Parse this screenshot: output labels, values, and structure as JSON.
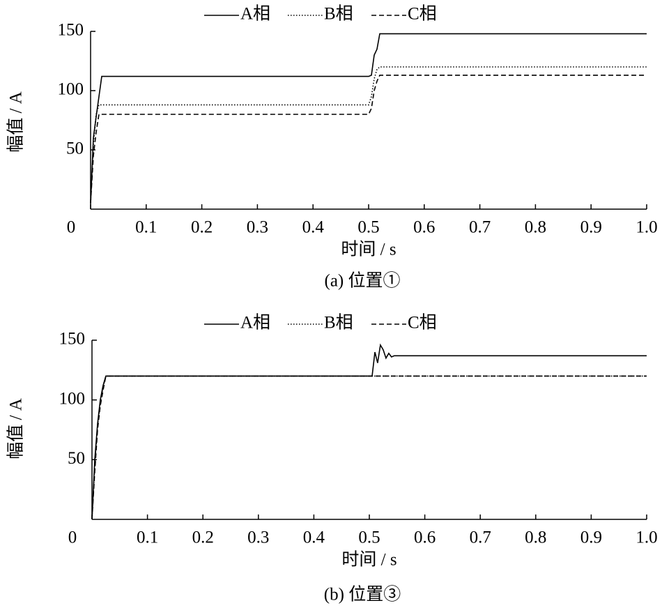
{
  "chart_data": [
    {
      "type": "line",
      "caption": "(a)  位置①",
      "xlabel": "时间 / s",
      "ylabel": "幅值 / A",
      "x": [
        0,
        0.005,
        0.01,
        0.015,
        0.02,
        0.5,
        0.505,
        0.51,
        0.515,
        0.52,
        0.53,
        0.54,
        0.55,
        1.0
      ],
      "series": [
        {
          "name": "A相",
          "color": "#000000",
          "style": "solid",
          "values": [
            5,
            60,
            78,
            95,
            112,
            112,
            113,
            130,
            135,
            148,
            148,
            148,
            148,
            148
          ]
        },
        {
          "name": "B相",
          "color": "#000000",
          "style": "dotted",
          "values": [
            5,
            55,
            80,
            88,
            88,
            88,
            95,
            110,
            118,
            120,
            120,
            120,
            120,
            120
          ]
        },
        {
          "name": "C相",
          "color": "#000000",
          "style": "dashed",
          "values": [
            5,
            45,
            65,
            80,
            80,
            80,
            85,
            100,
            108,
            113,
            113,
            113,
            113,
            113
          ]
        }
      ],
      "xlim": [
        0,
        1
      ],
      "xticks": [
        0,
        0.1,
        0.2,
        0.3,
        0.4,
        0.5,
        0.6,
        0.7,
        0.8,
        0.9,
        {
          "value": 1,
          "label": "1.0"
        }
      ],
      "ylim": [
        0,
        150
      ],
      "yticks": [
        50,
        100,
        150
      ],
      "grid": false
    },
    {
      "type": "line",
      "caption": "(b)  位置③",
      "xlabel": "时间 / s",
      "ylabel": "幅值 / A",
      "x": [
        0,
        0.005,
        0.01,
        0.015,
        0.02,
        0.025,
        0.5,
        0.505,
        0.51,
        0.515,
        0.52,
        0.525,
        0.53,
        0.535,
        0.54,
        0.545,
        0.55,
        1.0
      ],
      "series": [
        {
          "name": "A相",
          "color": "#000000",
          "style": "solid",
          "values": [
            0,
            50,
            80,
            100,
            112,
            120,
            120,
            120,
            140,
            131,
            146,
            142,
            135,
            139,
            136,
            137,
            137,
            137
          ]
        },
        {
          "name": "B相",
          "color": "#000000",
          "style": "dotted",
          "values": [
            0,
            45,
            78,
            98,
            110,
            120,
            120,
            120,
            120,
            120,
            120,
            120,
            120,
            120,
            120,
            120,
            120,
            120
          ]
        },
        {
          "name": "C相",
          "color": "#000000",
          "style": "dashed",
          "values": [
            0,
            40,
            75,
            95,
            108,
            120,
            120,
            120,
            120,
            120,
            120,
            120,
            120,
            120,
            120,
            120,
            120,
            120
          ]
        }
      ],
      "xlim": [
        0,
        1
      ],
      "xticks": [
        0,
        0.1,
        0.2,
        0.3,
        0.4,
        0.5,
        0.6,
        0.7,
        0.8,
        0.9,
        {
          "value": 1,
          "label": "1.0"
        }
      ],
      "ylim": [
        0,
        150
      ],
      "yticks": [
        50,
        100,
        150
      ],
      "grid": false
    }
  ]
}
